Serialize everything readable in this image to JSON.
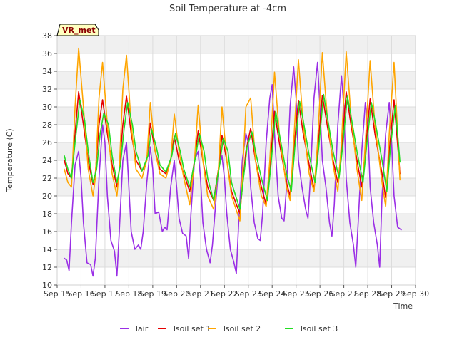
{
  "chart_data": {
    "type": "line",
    "title": "Soil Temperature at -4cm",
    "xlabel": "Time",
    "ylabel": "Temperature (C)",
    "xlim": [
      15,
      30
    ],
    "ylim": [
      10,
      38
    ],
    "x_tick_values": [
      15,
      16,
      17,
      18,
      19,
      20,
      21,
      22,
      23,
      24,
      25,
      26,
      27,
      28,
      29,
      30
    ],
    "x_tick_labels": [
      "Sep 15",
      "Sep 16",
      "Sep 17",
      "Sep 18",
      "Sep 19",
      "Sep 20",
      "Sep 21",
      "Sep 22",
      "Sep 23",
      "Sep 24",
      "Sep 25",
      "Sep 26",
      "Sep 27",
      "Sep 28",
      "Sep 29",
      "Sep 30"
    ],
    "y_ticks": [
      10,
      12,
      14,
      16,
      18,
      20,
      22,
      24,
      26,
      28,
      30,
      32,
      34,
      36,
      38
    ],
    "grid": true,
    "legend_position": "bottom",
    "station_label": "VR_met",
    "series": [
      {
        "name": "Tair",
        "color": "#9a2ee6",
        "x": [
          15.3,
          15.4,
          15.5,
          15.6,
          15.75,
          15.9,
          16.0,
          16.1,
          16.25,
          16.4,
          16.5,
          16.6,
          16.75,
          16.9,
          17.0,
          17.1,
          17.25,
          17.4,
          17.5,
          17.6,
          17.75,
          17.9,
          18.0,
          18.1,
          18.25,
          18.4,
          18.5,
          18.6,
          18.75,
          18.9,
          19.0,
          19.1,
          19.25,
          19.4,
          19.5,
          19.6,
          19.75,
          19.9,
          20.0,
          20.1,
          20.25,
          20.4,
          20.5,
          20.6,
          20.75,
          20.9,
          21.0,
          21.1,
          21.25,
          21.4,
          21.5,
          21.6,
          21.75,
          21.9,
          22.0,
          22.1,
          22.25,
          22.4,
          22.5,
          22.6,
          22.75,
          22.9,
          23.0,
          23.1,
          23.25,
          23.4,
          23.5,
          23.6,
          23.75,
          23.9,
          24.0,
          24.1,
          24.25,
          24.4,
          24.5,
          24.6,
          24.75,
          24.9,
          25.0,
          25.1,
          25.25,
          25.4,
          25.5,
          25.6,
          25.75,
          25.9,
          26.0,
          26.1,
          26.25,
          26.4,
          26.5,
          26.6,
          26.75,
          26.9,
          27.0,
          27.1,
          27.25,
          27.4,
          27.5,
          27.6,
          27.75,
          27.9,
          28.0,
          28.1,
          28.25,
          28.4,
          28.5,
          28.6,
          28.75,
          28.9,
          29.0,
          29.1,
          29.25,
          29.4
        ],
        "y": [
          13.0,
          12.8,
          11.6,
          17.0,
          23.5,
          25.0,
          22.0,
          17.0,
          12.5,
          12.3,
          11.0,
          13.0,
          22.0,
          28.0,
          26.0,
          20.0,
          15.0,
          13.8,
          11.0,
          16.0,
          24.0,
          26.0,
          21.0,
          16.0,
          14.0,
          14.5,
          14.0,
          16.0,
          21.5,
          25.5,
          23.0,
          18.0,
          18.2,
          16.0,
          16.5,
          16.2,
          21.0,
          24.0,
          21.0,
          17.5,
          15.8,
          15.5,
          13.0,
          18.0,
          24.0,
          25.0,
          22.0,
          17.0,
          14.0,
          12.5,
          14.5,
          18.0,
          23.0,
          24.5,
          22.0,
          18.0,
          14.0,
          12.5,
          11.3,
          17.0,
          24.0,
          27.0,
          26.0,
          21.0,
          17.0,
          15.2,
          15.0,
          18.0,
          26.0,
          31.0,
          32.5,
          27.0,
          20.0,
          17.5,
          17.2,
          21.0,
          30.0,
          34.5,
          31.0,
          24.0,
          21.0,
          18.5,
          17.5,
          22.0,
          31.0,
          35.0,
          30.0,
          24.0,
          21.0,
          17.0,
          15.5,
          19.0,
          28.0,
          33.5,
          30.0,
          22.0,
          17.0,
          14.5,
          12.0,
          17.0,
          25.0,
          30.5,
          28.0,
          21.0,
          17.0,
          14.5,
          12.0,
          20.0,
          27.0,
          30.5,
          26.0,
          20.0,
          16.5,
          16.2
        ]
      },
      {
        "name": "Tsoil set 1",
        "color": "#e60000",
        "x": [
          15.3,
          15.45,
          15.6,
          15.75,
          15.9,
          16.1,
          16.3,
          16.5,
          16.6,
          16.75,
          16.9,
          17.1,
          17.3,
          17.5,
          17.6,
          17.75,
          17.9,
          18.1,
          18.3,
          18.55,
          18.75,
          18.9,
          19.1,
          19.3,
          19.55,
          19.75,
          19.9,
          20.1,
          20.3,
          20.55,
          20.75,
          20.9,
          21.1,
          21.3,
          21.55,
          21.75,
          21.9,
          22.1,
          22.3,
          22.65,
          22.75,
          22.9,
          23.1,
          23.3,
          23.55,
          23.75,
          23.9,
          24.1,
          24.3,
          24.6,
          24.75,
          24.9,
          25.1,
          25.3,
          25.55,
          25.75,
          25.9,
          26.1,
          26.3,
          26.55,
          26.75,
          26.9,
          27.1,
          27.3,
          27.55,
          27.75,
          27.9,
          28.1,
          28.3,
          28.6,
          28.75,
          28.9,
          29.1,
          29.35
        ],
        "y": [
          24.0,
          22.5,
          22.0,
          27.0,
          31.7,
          28.0,
          24.0,
          21.3,
          22.5,
          28.0,
          30.8,
          27.0,
          23.5,
          21.0,
          23.0,
          28.0,
          31.2,
          27.0,
          24.0,
          22.8,
          24.0,
          28.2,
          25.0,
          23.0,
          22.5,
          24.0,
          26.7,
          24.0,
          22.5,
          20.5,
          24.0,
          27.3,
          24.0,
          21.0,
          19.5,
          23.0,
          26.8,
          24.0,
          20.5,
          18.0,
          21.0,
          25.0,
          27.6,
          24.0,
          21.0,
          19.0,
          23.0,
          29.5,
          26.0,
          21.5,
          20.0,
          25.0,
          30.7,
          27.0,
          23.5,
          20.7,
          25.0,
          31.3,
          28.0,
          24.0,
          21.5,
          25.0,
          31.7,
          28.0,
          24.0,
          21.0,
          25.0,
          30.9,
          27.0,
          22.5,
          19.8,
          25.0,
          30.8,
          22.5
        ]
      },
      {
        "name": "Tsoil set 2",
        "color": "#ffa500",
        "x": [
          15.3,
          15.45,
          15.6,
          15.75,
          15.9,
          16.1,
          16.3,
          16.5,
          16.6,
          16.75,
          16.9,
          17.1,
          17.3,
          17.5,
          17.6,
          17.75,
          17.9,
          18.1,
          18.3,
          18.55,
          18.75,
          18.9,
          19.1,
          19.3,
          19.55,
          19.75,
          19.9,
          20.1,
          20.3,
          20.55,
          20.75,
          20.9,
          21.1,
          21.3,
          21.55,
          21.75,
          21.9,
          22.1,
          22.3,
          22.65,
          22.75,
          22.9,
          23.1,
          23.3,
          23.55,
          23.75,
          23.9,
          24.1,
          24.3,
          24.6,
          24.75,
          24.9,
          25.1,
          25.3,
          25.55,
          25.75,
          25.9,
          26.1,
          26.3,
          26.55,
          26.75,
          26.9,
          27.1,
          27.3,
          27.55,
          27.75,
          27.9,
          28.1,
          28.3,
          28.6,
          28.75,
          28.9,
          29.1,
          29.35
        ],
        "y": [
          23.0,
          21.5,
          21.0,
          30.0,
          36.6,
          30.0,
          23.0,
          20.0,
          22.0,
          31.0,
          35.0,
          28.0,
          22.5,
          20.0,
          23.0,
          32.0,
          35.8,
          28.0,
          23.0,
          22.0,
          24.0,
          30.5,
          25.0,
          22.5,
          22.0,
          24.0,
          29.2,
          25.0,
          22.0,
          19.0,
          24.0,
          30.2,
          24.0,
          20.0,
          18.5,
          23.0,
          30.0,
          24.0,
          20.0,
          17.2,
          22.0,
          30.0,
          31.0,
          24.0,
          20.0,
          18.8,
          24.0,
          33.9,
          27.0,
          21.0,
          19.5,
          26.0,
          35.3,
          28.0,
          22.5,
          20.5,
          26.0,
          36.1,
          29.0,
          23.5,
          20.5,
          26.0,
          36.2,
          29.0,
          23.0,
          19.5,
          26.0,
          35.2,
          28.0,
          21.5,
          18.8,
          27.0,
          35.0,
          21.8
        ]
      },
      {
        "name": "Tsoil set 3",
        "color": "#22dd22",
        "x": [
          15.3,
          15.45,
          15.6,
          15.75,
          15.95,
          16.15,
          16.3,
          16.5,
          16.65,
          16.8,
          16.95,
          17.15,
          17.3,
          17.5,
          17.65,
          17.8,
          17.95,
          18.15,
          18.3,
          18.55,
          18.8,
          18.95,
          19.15,
          19.3,
          19.55,
          19.8,
          19.95,
          20.15,
          20.3,
          20.55,
          20.8,
          20.95,
          21.15,
          21.3,
          21.55,
          21.8,
          21.95,
          22.15,
          22.3,
          22.65,
          22.8,
          22.95,
          23.15,
          23.3,
          23.55,
          23.8,
          23.95,
          24.15,
          24.3,
          24.6,
          24.8,
          24.95,
          25.15,
          25.3,
          25.55,
          25.8,
          25.95,
          26.15,
          26.3,
          26.55,
          26.8,
          26.95,
          27.15,
          27.3,
          27.55,
          27.8,
          27.95,
          28.15,
          28.3,
          28.6,
          28.8,
          28.95,
          29.15,
          29.35
        ],
        "y": [
          24.5,
          23.0,
          22.0,
          26.0,
          30.8,
          28.5,
          25.0,
          21.5,
          23.0,
          27.0,
          29.3,
          28.0,
          24.5,
          21.5,
          23.5,
          27.5,
          30.5,
          28.0,
          25.0,
          22.8,
          24.5,
          27.5,
          25.5,
          23.5,
          22.7,
          24.5,
          27.0,
          25.0,
          23.0,
          21.0,
          24.5,
          27.0,
          25.0,
          22.0,
          19.5,
          23.5,
          26.5,
          25.0,
          21.5,
          18.5,
          22.0,
          25.5,
          27.2,
          25.0,
          22.0,
          19.5,
          23.5,
          29.5,
          27.0,
          22.5,
          20.5,
          25.5,
          30.6,
          28.5,
          24.5,
          21.5,
          25.5,
          31.4,
          29.0,
          25.0,
          22.0,
          25.5,
          31.2,
          29.0,
          25.0,
          21.5,
          25.5,
          30.5,
          28.5,
          24.0,
          20.5,
          25.5,
          30.1,
          23.8
        ]
      }
    ]
  }
}
